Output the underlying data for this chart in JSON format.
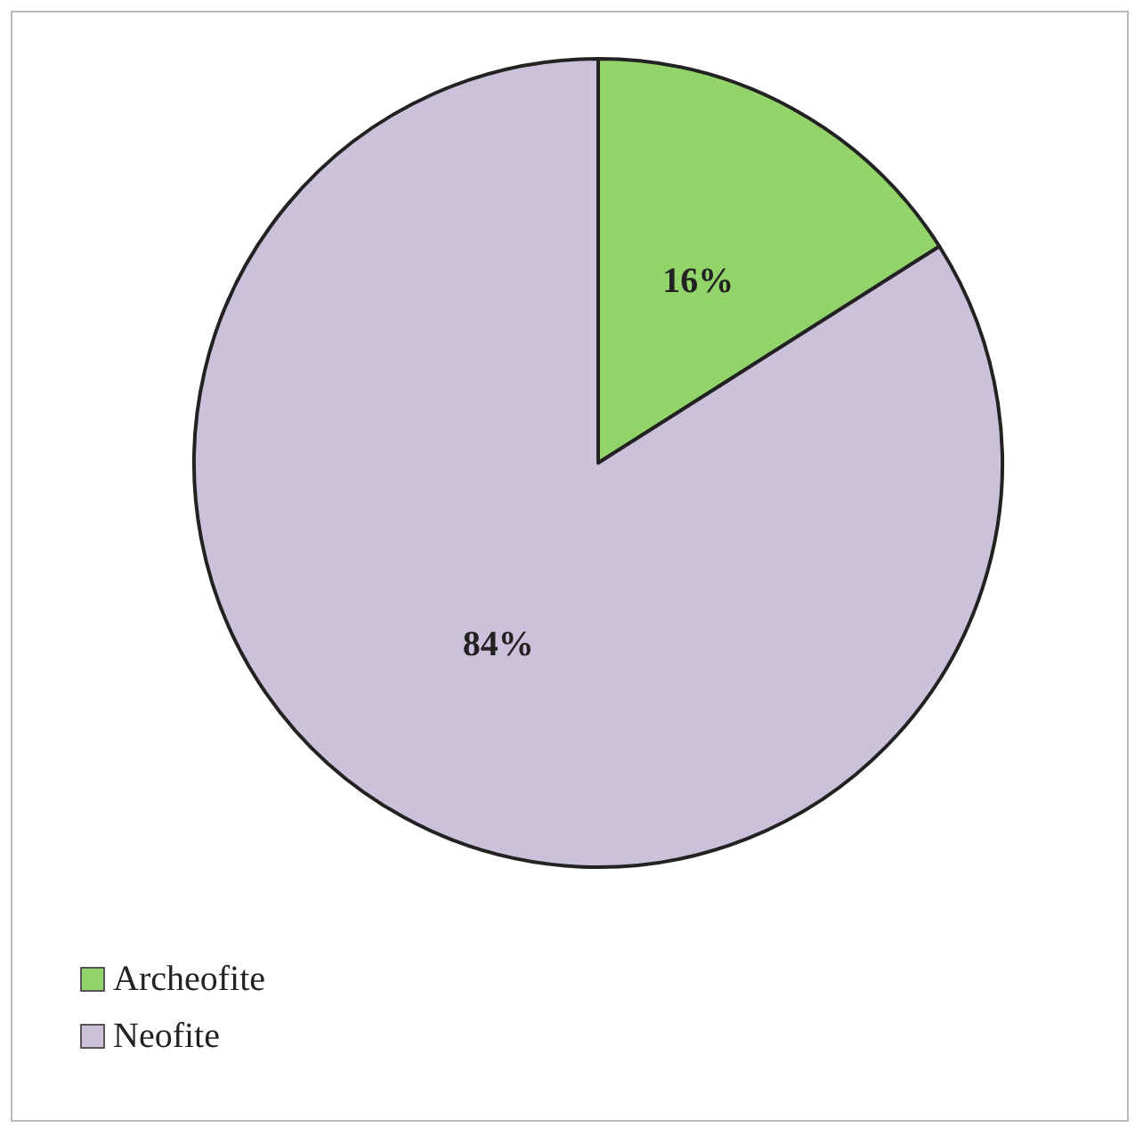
{
  "chart_data": {
    "type": "pie",
    "categories": [
      "Archeofite",
      "Neofite"
    ],
    "values": [
      16,
      84
    ],
    "colors": [
      "#92d36a",
      "#ccc1da"
    ],
    "value_labels": [
      "16%",
      "84%"
    ],
    "legend": "bottom left"
  }
}
